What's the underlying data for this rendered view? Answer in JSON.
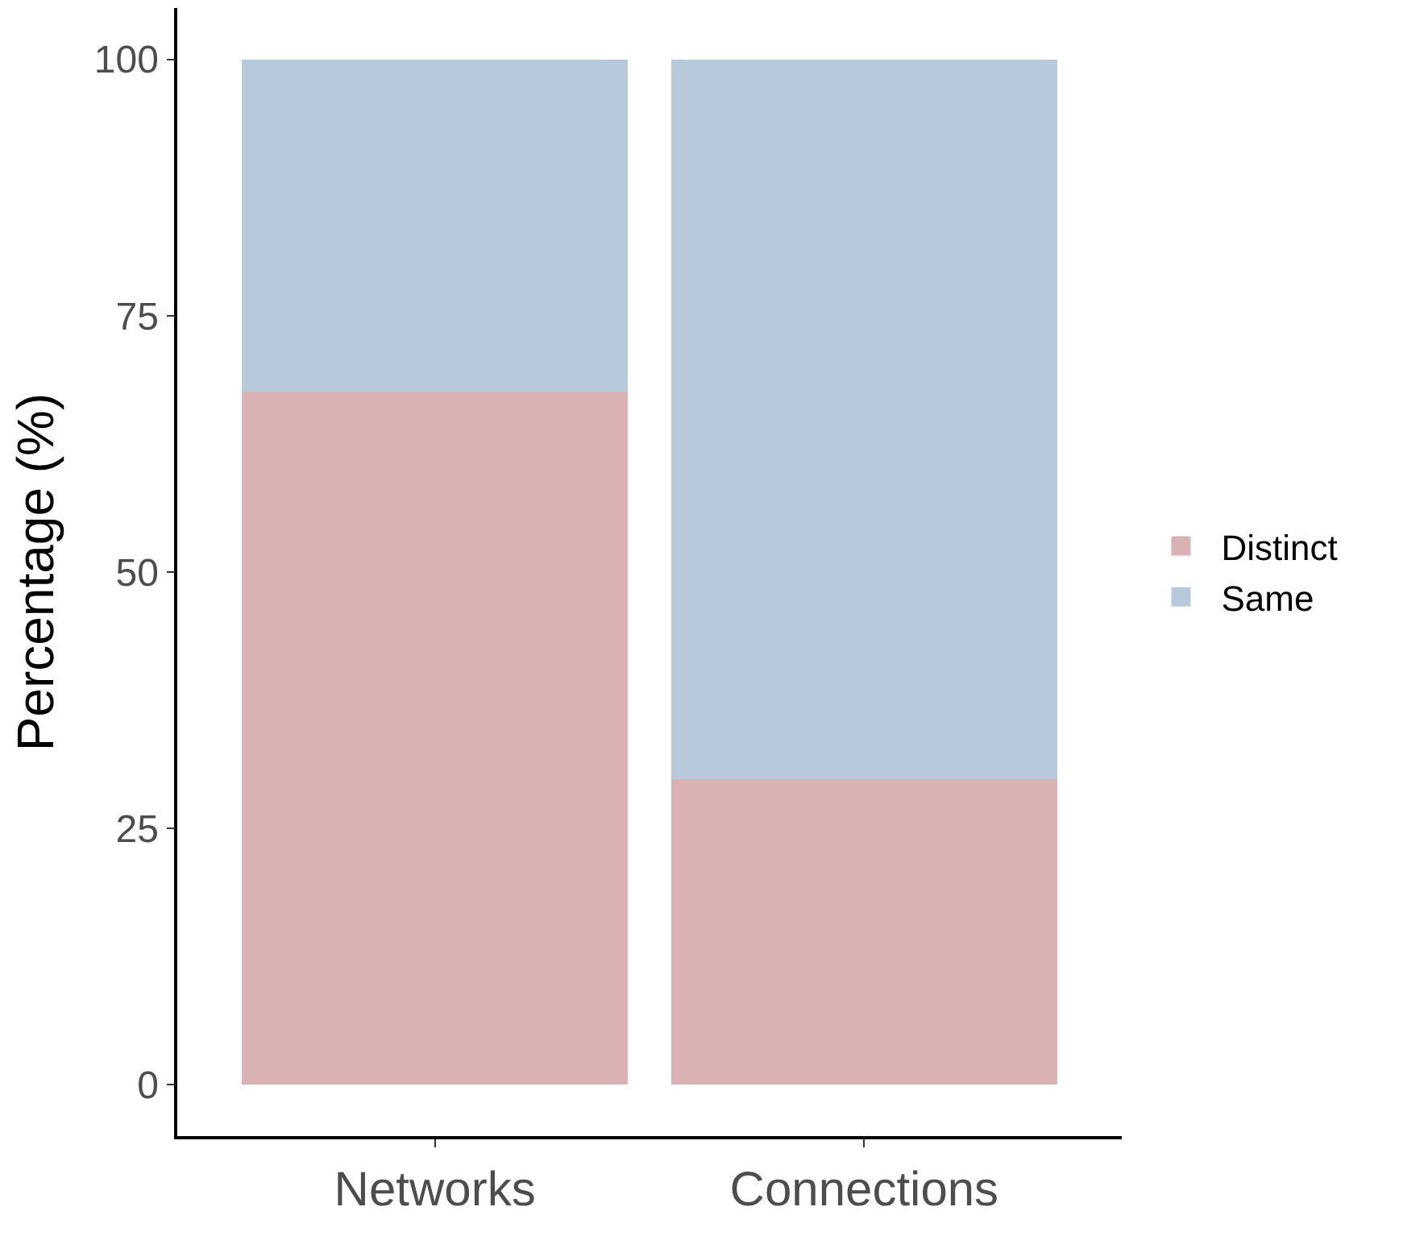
{
  "chart_data": {
    "type": "bar",
    "stacked": true,
    "ylabel": "Percentage (%)",
    "categories": [
      "Networks",
      "Connections"
    ],
    "series": [
      {
        "name": "Distinct",
        "color": "#dbb2b3",
        "values": [
          67.6,
          29.8
        ]
      },
      {
        "name": "Same",
        "color": "#b7c9db",
        "values": [
          32.4,
          70.2
        ]
      }
    ],
    "ylim": [
      -5,
      105
    ],
    "yticks": [
      0,
      25,
      50,
      75,
      100
    ],
    "legend": "right"
  }
}
